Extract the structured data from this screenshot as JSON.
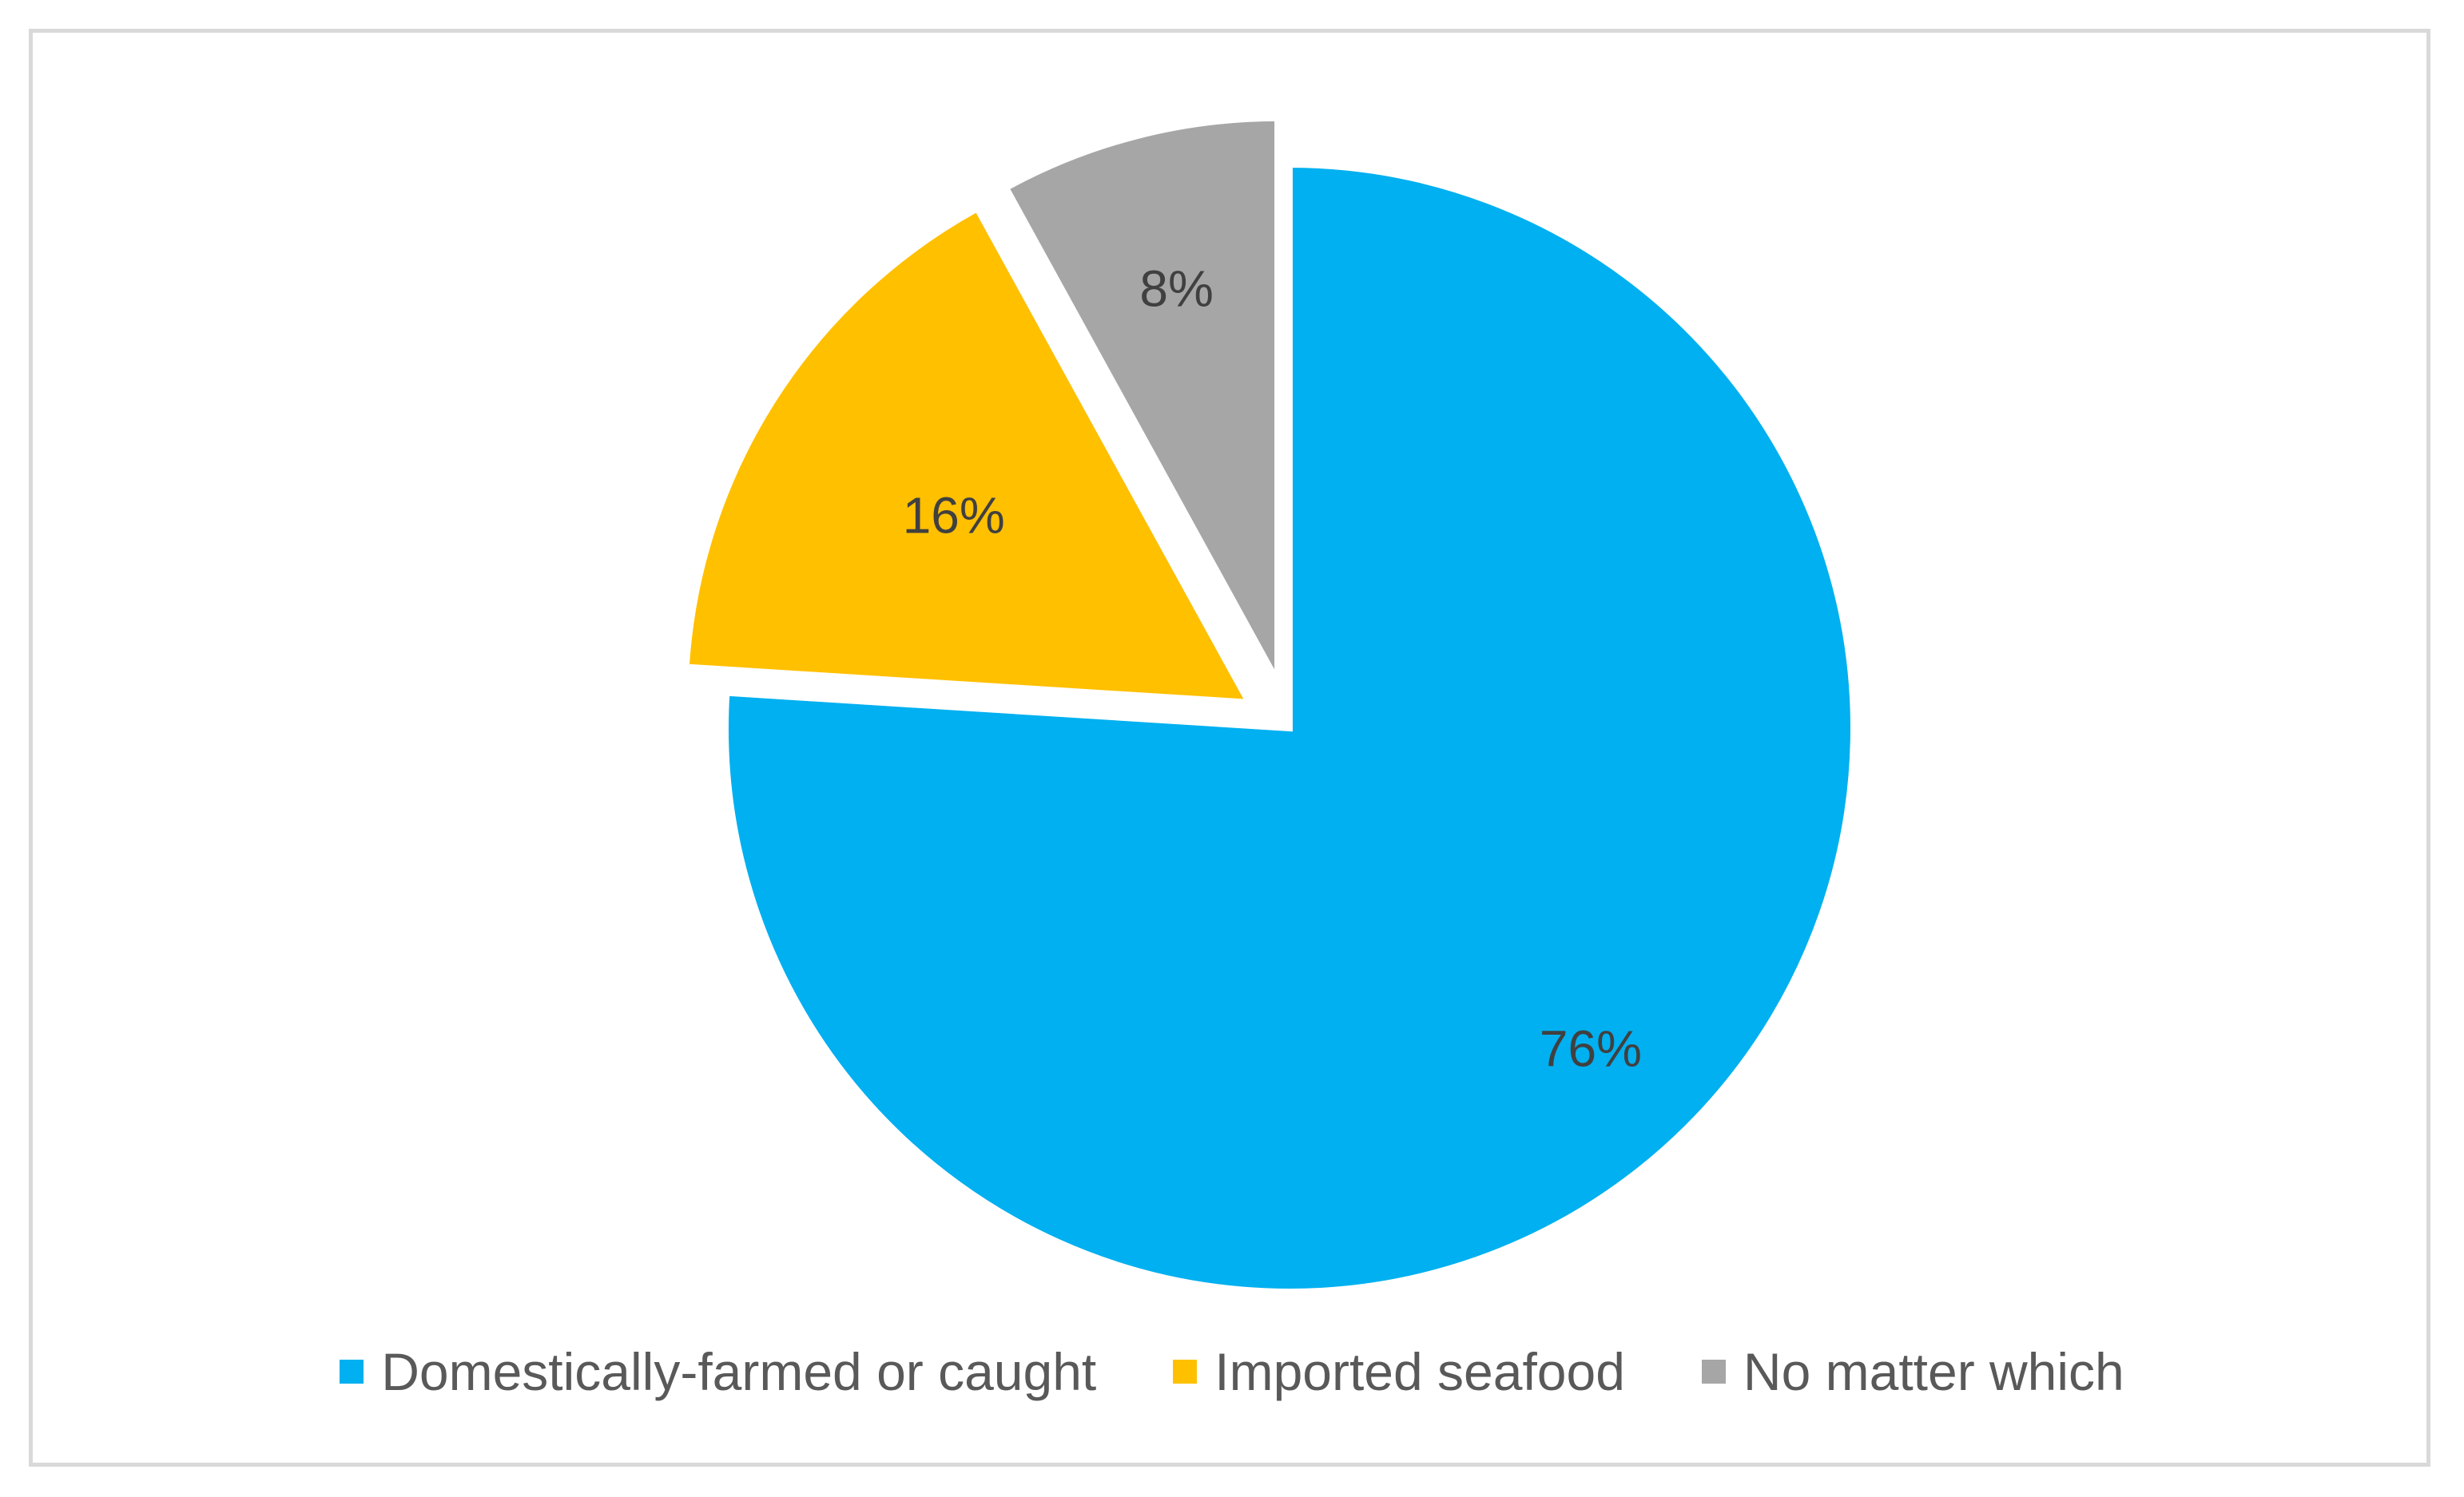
{
  "chart_data": {
    "type": "pie",
    "title": "",
    "exploded": true,
    "legend_position": "bottom",
    "slices": [
      {
        "name": "Domestically-farmed or caught",
        "value": 76,
        "label": "76%",
        "color": "#00b0f0"
      },
      {
        "name": "Imported seafood",
        "value": 16,
        "label": "16%",
        "color": "#ffc000"
      },
      {
        "name": "No matter which",
        "value": 8,
        "label": "8%",
        "color": "#a6a6a6"
      }
    ]
  },
  "legend": {
    "items": [
      {
        "label": "Domestically-farmed or caught",
        "color": "#00b0f0"
      },
      {
        "label": "Imported seafood",
        "color": "#ffc000"
      },
      {
        "label": "No matter which",
        "color": "#a6a6a6"
      }
    ]
  }
}
